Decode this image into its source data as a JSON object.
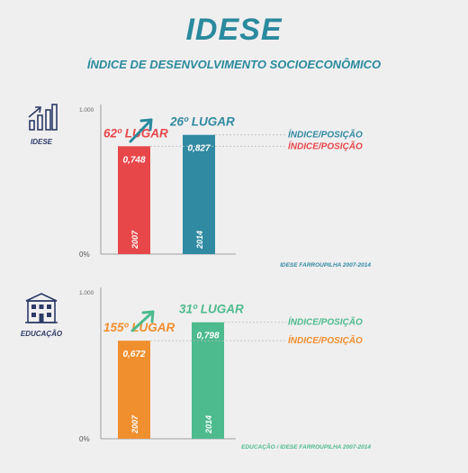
{
  "header": {
    "title": "IDESE",
    "subtitle": "ÍNDICE DE DESENVOLVIMENTO SOCIOECONÔMICO"
  },
  "colors": {
    "title": "#2a8a9e",
    "red": "#e8474a",
    "blue": "#2f8aa2",
    "orange": "#f08f2e",
    "green": "#4dbb8d",
    "icon": "#2b3a66"
  },
  "panels": [
    {
      "label": "IDESE",
      "icon": "bar-chart-growth-icon",
      "arrow_icon": "arrow-up-right-icon",
      "ref_label_top": "ÍNDICE/POSIÇÃO",
      "ref_label_low": "ÍNDICE/POSIÇÃO",
      "source": "IDESE FARROUPILHA 2007-2014"
    },
    {
      "label": "EDUCAÇÃO",
      "icon": "school-building-icon",
      "arrow_icon": "arrow-up-right-icon",
      "ref_label_top": "ÍNDICE/POSIÇÃO",
      "ref_label_low": "ÍNDICE/POSIÇÃO",
      "source": "EDUCAÇÃO / IDESE FARROUPILHA 2007-2014"
    }
  ],
  "chart_data": [
    {
      "type": "bar",
      "title": "IDESE",
      "ytick_top": "1.000",
      "ytick_bottom": "0%",
      "ylim": [
        0,
        1
      ],
      "categories": [
        "2007",
        "2014"
      ],
      "values": [
        0.748,
        0.827
      ],
      "value_labels": [
        "0,748",
        "0,827"
      ],
      "rank_labels": [
        "62º LUGAR",
        "26º LUGAR"
      ],
      "bar_colors": [
        "#e8474a",
        "#2f8aa2"
      ]
    },
    {
      "type": "bar",
      "title": "EDUCAÇÃO",
      "ytick_top": "1.000",
      "ytick_bottom": "0%",
      "ylim": [
        0,
        1
      ],
      "categories": [
        "2007",
        "2014"
      ],
      "values": [
        0.672,
        0.798
      ],
      "value_labels": [
        "0,672",
        "0,798"
      ],
      "rank_labels": [
        "155º LUGAR",
        "31º LUGAR"
      ],
      "bar_colors": [
        "#f08f2e",
        "#4dbb8d"
      ]
    }
  ]
}
